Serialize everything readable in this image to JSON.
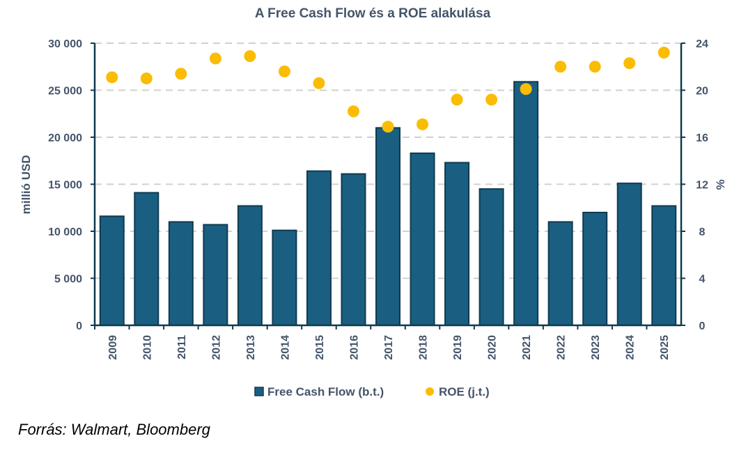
{
  "chart_data": {
    "type": "bar+scatter",
    "title": "A Free Cash Flow és a ROE alakulása",
    "ylabel": "millió USD",
    "y2label": "%",
    "ylim": [
      0,
      30000
    ],
    "y2lim": [
      0,
      24
    ],
    "yticks": [
      "0",
      "5 000",
      "10 000",
      "15 000",
      "20 000",
      "25 000",
      "30 000"
    ],
    "y2ticks": [
      "0",
      "4",
      "8",
      "12",
      "16",
      "20",
      "24"
    ],
    "grid": true,
    "legend_position": "bottom",
    "categories": [
      "2009",
      "2010",
      "2011",
      "2012",
      "2013",
      "2014",
      "2015",
      "2016",
      "2017",
      "2018",
      "2019",
      "2020",
      "2021",
      "2022",
      "2023",
      "2024",
      "2025"
    ],
    "series": [
      {
        "name": "Free Cash Flow (b.t.)",
        "type": "bar",
        "axis": "left",
        "color": "#1a5f82",
        "values": [
          11600,
          14100,
          11000,
          10700,
          12700,
          10100,
          16400,
          16100,
          21000,
          18300,
          17300,
          14500,
          25900,
          11000,
          12000,
          15100,
          12700
        ]
      },
      {
        "name": "ROE (j.t.)",
        "type": "scatter",
        "axis": "right",
        "color": "#fbbc05",
        "values": [
          21.1,
          21.0,
          21.4,
          22.7,
          22.9,
          21.6,
          20.6,
          18.2,
          16.9,
          17.1,
          19.2,
          19.2,
          20.1,
          22.0,
          22.0,
          22.3,
          23.2
        ]
      }
    ]
  },
  "source": "Forrás: Walmart, Bloomberg",
  "colors": {
    "text": "#44546a",
    "axis": "#0f3a4f",
    "grid": "#d0d0d0"
  }
}
